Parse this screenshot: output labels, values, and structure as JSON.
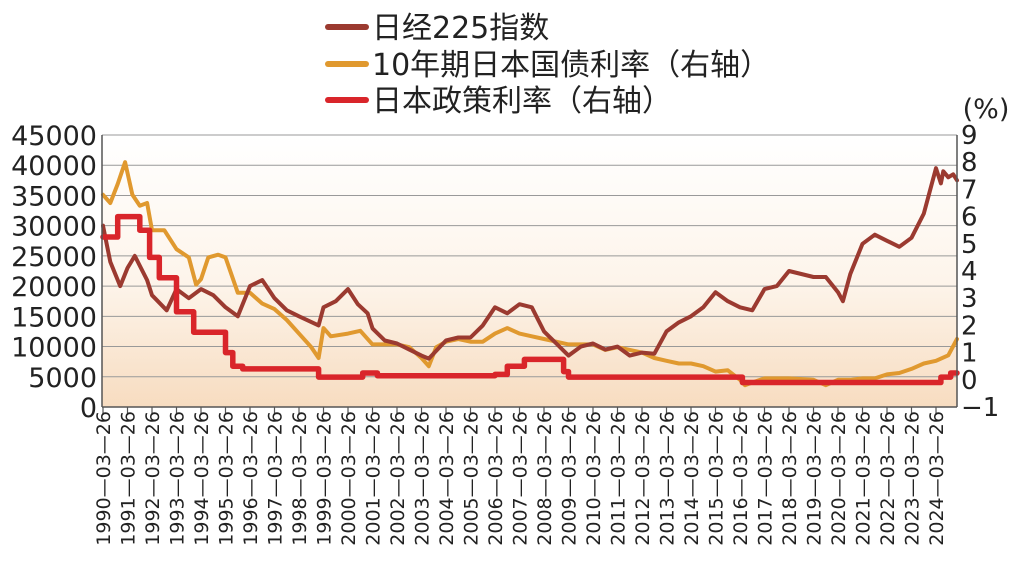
{
  "chart_data": {
    "type": "line",
    "legend": {
      "placement": "top",
      "entries": [
        {
          "label": "日经225指数",
          "color": "#9b3a30"
        },
        {
          "label": "10年期日本国债利率（右轴）",
          "color": "#e0992f"
        },
        {
          "label": "日本政策利率（右轴）",
          "color": "#d9252a"
        }
      ]
    },
    "left_axis": {
      "ylim": [
        0,
        45000
      ],
      "ticks": [
        "0",
        "5000",
        "10000",
        "15000",
        "20000",
        "25000",
        "30000",
        "35000",
        "40000",
        "45000"
      ]
    },
    "right_axis": {
      "unit_label": "(%)",
      "ylim": [
        -1,
        9
      ],
      "ticks": [
        "−1",
        "0",
        "1",
        "2",
        "3",
        "4",
        "5",
        "6",
        "7",
        "8",
        "9"
      ]
    },
    "x_tick_labels": [
      "1990—03—26",
      "1991—03—26",
      "1992—03—26",
      "1993—03—26",
      "1994—03—26",
      "1995—03—26",
      "1996—03—26",
      "1997—03—26",
      "1998—03—26",
      "1999—03—26",
      "2000—03—26",
      "2001—03—26",
      "2002—03—26",
      "2003—03—26",
      "2004—03—26",
      "2005—03—26",
      "2006—03—26",
      "2007—03—26",
      "2008—03—26",
      "2009—03—26",
      "2010—03—26",
      "2011—03—26",
      "2012—03—26",
      "2013—03—26",
      "2014—03—26",
      "2015—03—26",
      "2016—03—26",
      "2017—03—26",
      "2018—03—26",
      "2019—03—26",
      "2020—03—26",
      "2021—03—26",
      "2022—03—26",
      "2023—03—26",
      "2024—03—26"
    ],
    "grid": "horizontal",
    "series": [
      {
        "name": "日经225指数",
        "axis": "left",
        "x": [
          1990,
          1990.3,
          1990.7,
          1991,
          1991.3,
          1991.8,
          1992,
          1992.6,
          1993,
          1993.5,
          1994,
          1994.5,
          1995,
          1995.5,
          1996,
          1996.5,
          1997,
          1997.5,
          1998,
          1998.8,
          1999,
          1999.5,
          2000,
          2000.4,
          2000.8,
          2001,
          2001.5,
          2002,
          2002.5,
          2003,
          2003.3,
          2004,
          2004.5,
          2005,
          2005.5,
          2006,
          2006.5,
          2007,
          2007.5,
          2008,
          2008.5,
          2009,
          2009.5,
          2010,
          2010.5,
          2011,
          2011.5,
          2012,
          2012.5,
          2013,
          2013.5,
          2014,
          2014.5,
          2015,
          2015.5,
          2016,
          2016.5,
          2017,
          2017.5,
          2018,
          2018.5,
          2019,
          2019.5,
          2020,
          2020.2,
          2020.5,
          2021,
          2021.5,
          2022,
          2022.5,
          2023,
          2023.5,
          2024,
          2024.2,
          2024.3,
          2024.5,
          2024.7,
          2024.9
        ],
        "values": [
          30000,
          24000,
          20000,
          23000,
          25000,
          21000,
          18500,
          16000,
          19500,
          18000,
          19500,
          18500,
          16500,
          15000,
          20000,
          21000,
          18000,
          16000,
          15000,
          13500,
          16500,
          17500,
          19500,
          17000,
          15500,
          13000,
          11000,
          10500,
          9500,
          8500,
          8000,
          11000,
          11500,
          11500,
          13500,
          16500,
          15500,
          17000,
          16500,
          12500,
          10500,
          8500,
          10000,
          10500,
          9500,
          10000,
          8500,
          9000,
          8800,
          12500,
          14000,
          15000,
          16500,
          19000,
          17500,
          16500,
          16000,
          19500,
          20000,
          22500,
          22000,
          21500,
          21500,
          19000,
          17500,
          22000,
          27000,
          28500,
          27500,
          26500,
          28000,
          32000,
          39500,
          37000,
          39000,
          38000,
          38500,
          37500
        ]
      },
      {
        "name": "10年期日本国债利率（右轴）",
        "axis": "right",
        "x": [
          1990,
          1990.3,
          1990.6,
          1990.9,
          1991.2,
          1991.5,
          1991.8,
          1992,
          1992.5,
          1993,
          1993.5,
          1993.8,
          1994,
          1994.3,
          1994.7,
          1995,
          1995.5,
          1996,
          1996.5,
          1997,
          1997.5,
          1998,
          1998.5,
          1998.8,
          1999,
          1999.3,
          2000,
          2000.5,
          2001,
          2001.5,
          2002,
          2002.5,
          2003,
          2003.3,
          2003.6,
          2004,
          2004.5,
          2005,
          2005.5,
          2006,
          2006.5,
          2007,
          2007.5,
          2008,
          2008.5,
          2009,
          2009.5,
          2010,
          2010.5,
          2011,
          2011.5,
          2012,
          2012.5,
          2013,
          2013.5,
          2014,
          2014.5,
          2015,
          2015.5,
          2016,
          2016.2,
          2016.5,
          2017,
          2018,
          2019,
          2019.5,
          2020,
          2020.5,
          2021,
          2021.5,
          2022,
          2022.5,
          2023,
          2023.5,
          2024,
          2024.5,
          2024.9
        ],
        "values": [
          6.8,
          6.5,
          7.2,
          8.0,
          6.8,
          6.4,
          6.5,
          5.5,
          5.5,
          4.8,
          4.5,
          3.5,
          3.7,
          4.5,
          4.6,
          4.5,
          3.2,
          3.2,
          2.8,
          2.6,
          2.2,
          1.7,
          1.2,
          0.8,
          1.9,
          1.6,
          1.7,
          1.8,
          1.3,
          1.3,
          1.3,
          1.2,
          0.8,
          0.5,
          1.2,
          1.4,
          1.5,
          1.4,
          1.4,
          1.7,
          1.9,
          1.7,
          1.6,
          1.5,
          1.4,
          1.3,
          1.3,
          1.3,
          1.1,
          1.2,
          1.1,
          1.0,
          0.8,
          0.7,
          0.6,
          0.6,
          0.5,
          0.3,
          0.35,
          0.0,
          -0.2,
          -0.1,
          0.05,
          0.05,
          0.0,
          -0.2,
          0.0,
          0.0,
          0.05,
          0.05,
          0.2,
          0.25,
          0.4,
          0.6,
          0.7,
          0.9,
          1.5
        ]
      },
      {
        "name": "日本政策利率（右轴）",
        "axis": "right",
        "x": [
          1990,
          1990.3,
          1990.6,
          1990.6,
          1991.5,
          1991.5,
          1991.9,
          1991.9,
          1992.3,
          1992.3,
          1993,
          1993,
          1993.7,
          1993.7,
          1995,
          1995,
          1995.3,
          1995.3,
          1995.7,
          1995.7,
          1998.8,
          1998.8,
          2000.6,
          2000.6,
          2001.2,
          2001.2,
          2006,
          2006,
          2006.5,
          2006.5,
          2007.2,
          2007.2,
          2008.8,
          2008.8,
          2009,
          2009,
          2016.1,
          2016.1,
          2024.2,
          2024.2,
          2024.6,
          2024.6,
          2024.9
        ],
        "values": [
          5.25,
          5.25,
          5.25,
          6.0,
          6.0,
          5.5,
          5.5,
          4.5,
          4.5,
          3.75,
          3.75,
          2.5,
          2.5,
          1.75,
          1.75,
          1.0,
          1.0,
          0.5,
          0.5,
          0.4,
          0.4,
          0.1,
          0.1,
          0.25,
          0.25,
          0.15,
          0.15,
          0.2,
          0.2,
          0.5,
          0.5,
          0.75,
          0.75,
          0.3,
          0.3,
          0.1,
          0.1,
          -0.1,
          -0.1,
          0.1,
          0.1,
          0.25,
          0.25
        ]
      }
    ]
  }
}
